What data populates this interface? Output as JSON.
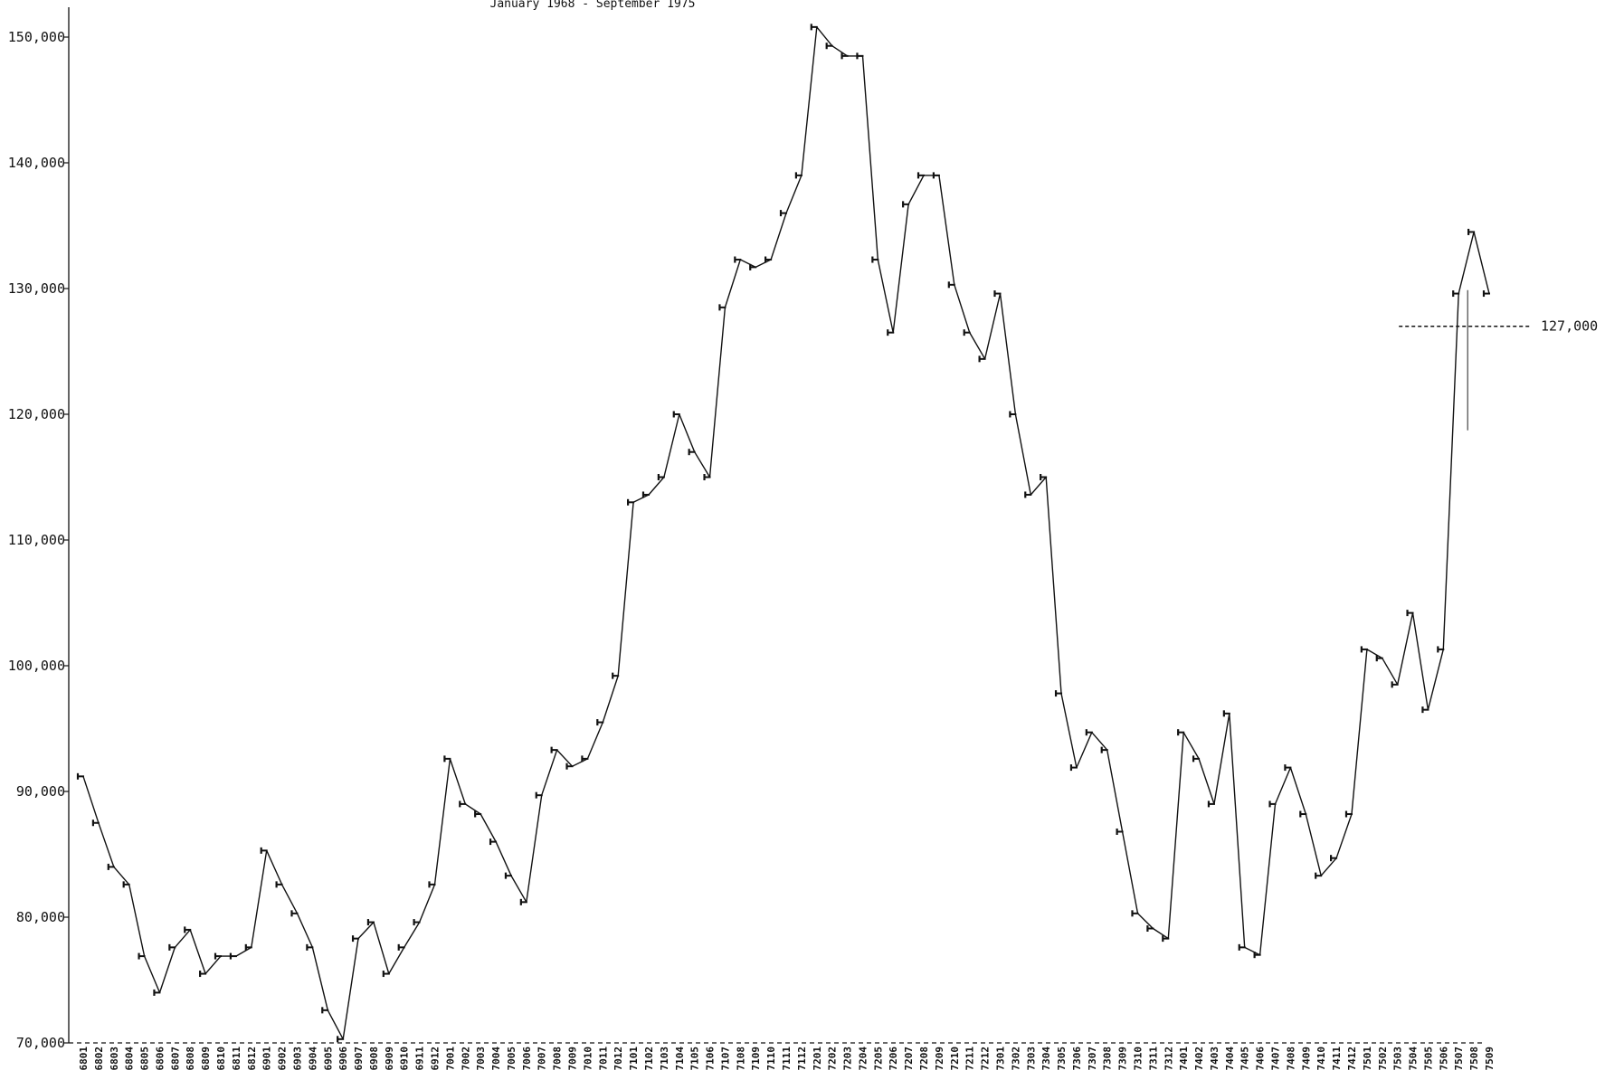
{
  "chart_data": {
    "type": "line",
    "subtitle": "January 1968 - September 1975",
    "ylim": [
      70000,
      150000
    ],
    "yticks": [
      "70,000",
      "80,000",
      "90,000",
      "100,000",
      "110,000",
      "120,000",
      "130,000",
      "140,000",
      "150,000"
    ],
    "ytick_values": [
      70000,
      80000,
      90000,
      100000,
      110000,
      120000,
      130000,
      140000,
      150000
    ],
    "grid": false,
    "categories": [
      "6801",
      "6802",
      "6803",
      "6804",
      "6805",
      "6806",
      "6807",
      "6808",
      "6809",
      "6810",
      "6811",
      "6812",
      "6901",
      "6902",
      "6903",
      "6904",
      "6905",
      "6906",
      "6907",
      "6908",
      "6909",
      "6910",
      "6911",
      "6912",
      "7001",
      "7002",
      "7003",
      "7004",
      "7005",
      "7006",
      "7007",
      "7008",
      "7009",
      "7010",
      "7011",
      "7012",
      "7101",
      "7102",
      "7103",
      "7104",
      "7105",
      "7106",
      "7107",
      "7108",
      "7109",
      "7110",
      "7111",
      "7112",
      "7201",
      "7202",
      "7203",
      "7204",
      "7205",
      "7206",
      "7207",
      "7208",
      "7209",
      "7210",
      "7211",
      "7212",
      "7301",
      "7302",
      "7303",
      "7304",
      "7305",
      "7306",
      "7307",
      "7308",
      "7309",
      "7310",
      "7311",
      "7312",
      "7401",
      "7402",
      "7403",
      "7404",
      "7405",
      "7406",
      "7407",
      "7408",
      "7409",
      "7410",
      "7411",
      "7412",
      "7501",
      "7502",
      "7503",
      "7504",
      "7505",
      "7506",
      "7507",
      "7508",
      "7509"
    ],
    "series": [
      {
        "values": [
          91200,
          87500,
          84000,
          82600,
          76900,
          74000,
          77600,
          79000,
          75500,
          76900,
          76900,
          77600,
          85300,
          82600,
          80300,
          77600,
          72600,
          70300,
          78300,
          79600,
          75500,
          77600,
          79600,
          82600,
          92600,
          89000,
          88200,
          86000,
          83300,
          81200,
          89700,
          93300,
          92000,
          92600,
          95500,
          99200,
          113000,
          113600,
          115000,
          120000,
          117000,
          115000,
          128500,
          132300,
          131700,
          132300,
          136000,
          139000,
          150800,
          149300,
          148500,
          148500,
          132300,
          126500,
          136700,
          139000,
          139000,
          130300,
          126500,
          124400,
          129600,
          120000,
          113600,
          115000,
          97800,
          91900,
          94700,
          93300,
          86800,
          80300,
          79100,
          78300,
          94700,
          92600,
          89000,
          96200,
          77600,
          77000,
          89000,
          91900,
          88200,
          83300,
          84700,
          88200,
          101300,
          100600,
          98500,
          104200,
          96500,
          101300,
          129600,
          134500,
          129600
        ]
      }
    ],
    "annotations": [
      {
        "text": "127,000",
        "value": 127000
      }
    ]
  }
}
